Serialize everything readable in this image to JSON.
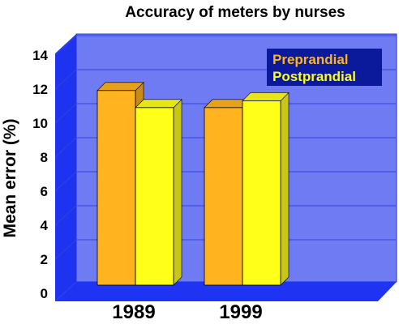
{
  "chart_data": {
    "type": "bar",
    "title": "Accuracy of meters by nurses",
    "xlabel": "",
    "ylabel": "Mean error (%)",
    "categories": [
      "1989",
      "1999"
    ],
    "series": [
      {
        "name": "Preprandial",
        "values": [
          11.4,
          10.4
        ],
        "color": "#FFB31F"
      },
      {
        "name": "Postprandial",
        "values": [
          10.4,
          10.8
        ],
        "color": "#FFFF1A"
      }
    ],
    "ylim": [
      0,
      14
    ],
    "yticks": [
      "0",
      "2",
      "4",
      "6",
      "8",
      "10",
      "12",
      "14"
    ],
    "grid": true,
    "legend_position": "top-right",
    "colors": {
      "wall": "#6F7BF2",
      "side_wall": "#1D33F0",
      "floor": "#1E34F2",
      "grid": "#3344DD",
      "legend_bg": "#0A1A9A"
    }
  }
}
